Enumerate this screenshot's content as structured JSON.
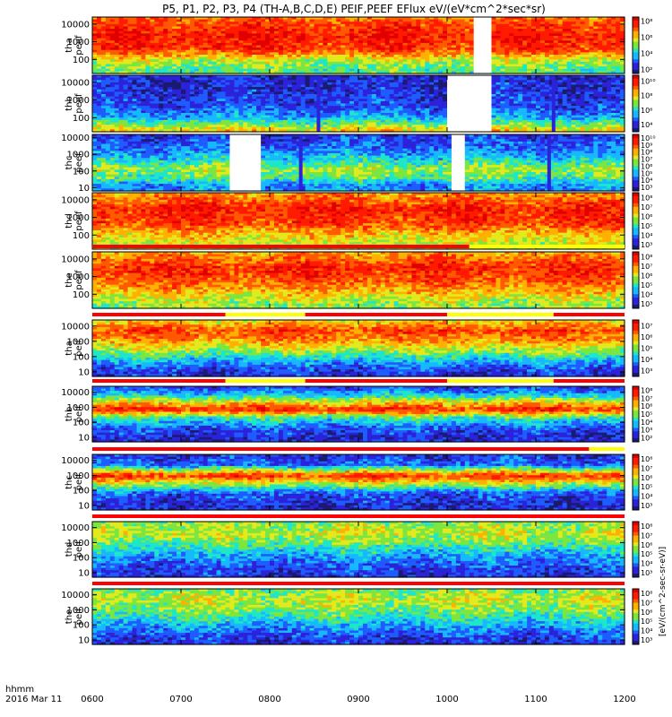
{
  "title": "P5, P1, P2, P3, P4 (TH-A,B,C,D,E) PEIF,PEEF EFlux eV/(eV*cm^2*sec*sr)",
  "time_axis": {
    "row1_label": "hhmm",
    "row2_label": "2016 Mar 11",
    "ticks": [
      "0600",
      "0700",
      "0800",
      "0900",
      "1000",
      "1100",
      "1200"
    ],
    "tick_hours": [
      6,
      7,
      8,
      9,
      10,
      11,
      12
    ],
    "range_hours": [
      6,
      12
    ]
  },
  "colorbar_unit_label": "[eV/(cm^2-sec-sr-eV)]",
  "colormap": [
    "#1a1a6e",
    "#2b22d9",
    "#1f5cff",
    "#17b8ff",
    "#1ee6c8",
    "#7ce640",
    "#e2ea1e",
    "#ffb000",
    "#ff5a00",
    "#ff1a00",
    "#e00000"
  ],
  "quality_bar_colors": {
    "ok": "#ff0000",
    "caution": "#ffff00"
  },
  "chart_data": {
    "type": "heatmap",
    "x_unit": "UT hours",
    "panels": [
      {
        "id": "tha-peef",
        "probe": "tha",
        "product": "peef",
        "ylabel_lines": [
          "tha",
          "peef"
        ],
        "yticks": [
          "10000",
          "1000",
          "100"
        ],
        "ytick_log": [
          4,
          3,
          2
        ],
        "ylog_range": [
          1.2,
          4.4
        ],
        "cbar_labels": [
          "10⁸",
          "10⁶",
          "10⁴",
          "10²"
        ],
        "cbar_log": [
          8,
          6,
          4,
          2
        ],
        "cbar_log_range": [
          1.5,
          8.5
        ],
        "levels": [
          {
            "log_e": 4.4,
            "value": 0.78
          },
          {
            "log_e": 3.4,
            "value": 0.92
          },
          {
            "log_e": 2.6,
            "value": 0.88
          },
          {
            "log_e": 1.9,
            "value": 0.55
          },
          {
            "log_e": 1.4,
            "value": 0.45
          }
        ],
        "gaps": [
          [
            10.3,
            10.5
          ]
        ],
        "vertical_stripes": []
      },
      {
        "id": "thb-peef",
        "probe": "thb",
        "product": "peef",
        "ylabel_lines": [
          "thb",
          "peef"
        ],
        "yticks": [
          "10000",
          "1000",
          "100"
        ],
        "ytick_log": [
          4,
          3,
          2
        ],
        "ylog_range": [
          1.2,
          4.4
        ],
        "cbar_labels": [
          "10¹⁰",
          "10⁸",
          "10⁶",
          "10⁴"
        ],
        "cbar_log": [
          10,
          8,
          6,
          4
        ],
        "cbar_log_range": [
          3.0,
          10.8
        ],
        "levels": [
          {
            "log_e": 4.4,
            "value": 0.1
          },
          {
            "log_e": 3.4,
            "value": 0.12
          },
          {
            "log_e": 2.5,
            "value": 0.18
          },
          {
            "log_e": 2.0,
            "value": 0.3
          },
          {
            "log_e": 1.6,
            "value": 0.5
          },
          {
            "log_e": 1.3,
            "value": 0.65
          }
        ],
        "gaps": [
          [
            10.0,
            10.5
          ]
        ],
        "vertical_stripes": [
          8.55,
          11.2
        ]
      },
      {
        "id": "thc-peef",
        "probe": "thc",
        "product": "peef",
        "ylabel_lines": [
          "thc",
          "peef"
        ],
        "yticks": [
          "10000",
          "1000",
          "100",
          "10"
        ],
        "ytick_log": [
          4,
          3,
          2,
          1
        ],
        "ylog_range": [
          0.8,
          4.2
        ],
        "cbar_labels": [
          "10¹⁰",
          "10⁹",
          "10⁸",
          "10⁷",
          "10⁶",
          "10⁵",
          "10⁴",
          "10³"
        ],
        "cbar_log": [
          10,
          9,
          8,
          7,
          6,
          5,
          4,
          3
        ],
        "cbar_log_range": [
          2.5,
          10.5
        ],
        "levels": [
          {
            "log_e": 4.2,
            "value": 0.12
          },
          {
            "log_e": 3.3,
            "value": 0.22
          },
          {
            "log_e": 2.6,
            "value": 0.38
          },
          {
            "log_e": 2.1,
            "value": 0.55
          },
          {
            "log_e": 1.6,
            "value": 0.45
          },
          {
            "log_e": 1.1,
            "value": 0.25
          }
        ],
        "gaps": [
          [
            7.55,
            7.9
          ],
          [
            10.05,
            10.2
          ]
        ],
        "vertical_stripes": [
          8.35,
          11.15
        ]
      },
      {
        "id": "thd-peef",
        "probe": "thd",
        "product": "peef",
        "ylabel_lines": [
          "thd",
          "peef"
        ],
        "yticks": [
          "10000",
          "1000",
          "100"
        ],
        "ytick_log": [
          4,
          3,
          2
        ],
        "ylog_range": [
          1.2,
          4.4
        ],
        "cbar_labels": [
          "10⁸",
          "10⁷",
          "10⁶",
          "10⁵",
          "10⁴",
          "10³"
        ],
        "cbar_log": [
          8,
          7,
          6,
          5,
          4,
          3
        ],
        "cbar_log_range": [
          2.5,
          8.5
        ],
        "levels": [
          {
            "log_e": 4.4,
            "value": 0.72
          },
          {
            "log_e": 3.5,
            "value": 0.9
          },
          {
            "log_e": 2.7,
            "value": 0.86
          },
          {
            "log_e": 2.0,
            "value": 0.66
          },
          {
            "log_e": 1.4,
            "value": 0.55
          }
        ],
        "gaps": [],
        "vertical_stripes": []
      },
      {
        "id": "the-peef",
        "probe": "the",
        "product": "peef",
        "ylabel_lines": [
          "the",
          "peef"
        ],
        "yticks": [
          "10000",
          "1000",
          "100"
        ],
        "ytick_log": [
          4,
          3,
          2
        ],
        "ylog_range": [
          1.2,
          4.4
        ],
        "cbar_labels": [
          "10⁸",
          "10⁷",
          "10⁶",
          "10⁵",
          "10⁴",
          "10³"
        ],
        "cbar_log": [
          8,
          7,
          6,
          5,
          4,
          3
        ],
        "cbar_log_range": [
          2.5,
          8.5
        ],
        "levels": [
          {
            "log_e": 4.4,
            "value": 0.7
          },
          {
            "log_e": 3.5,
            "value": 0.9
          },
          {
            "log_e": 2.7,
            "value": 0.82
          },
          {
            "log_e": 2.0,
            "value": 0.64
          },
          {
            "log_e": 1.4,
            "value": 0.52
          }
        ],
        "gaps": [],
        "vertical_stripes": [],
        "quality_bar": {
          "segments": [
            {
              "start": 6.0,
              "end": 10.25,
              "state": "ok"
            },
            {
              "start": 10.25,
              "end": 12.0,
              "state": "caution"
            }
          ]
        }
      },
      {
        "id": "tha-peif",
        "probe": "tha",
        "product": "peif",
        "ylabel_lines": [
          "tha",
          "peif"
        ],
        "yticks": [
          "10000",
          "1000",
          "100",
          "10"
        ],
        "ytick_log": [
          4,
          3,
          2,
          1
        ],
        "ylog_range": [
          0.7,
          4.4
        ],
        "cbar_labels": [
          "10⁷",
          "10⁶",
          "10⁵",
          "10⁴",
          "10³"
        ],
        "cbar_log": [
          7,
          6,
          5,
          4,
          3
        ],
        "cbar_log_range": [
          2.5,
          7.5
        ],
        "levels": [
          {
            "log_e": 4.4,
            "value": 0.62
          },
          {
            "log_e": 3.7,
            "value": 0.85
          },
          {
            "log_e": 3.0,
            "value": 0.72
          },
          {
            "log_e": 2.3,
            "value": 0.5
          },
          {
            "log_e": 1.7,
            "value": 0.3
          },
          {
            "log_e": 1.0,
            "value": 0.12
          }
        ],
        "gaps": [],
        "vertical_stripes": [],
        "quality_bar": {
          "segments": [
            {
              "start": 6.0,
              "end": 7.5,
              "state": "ok"
            },
            {
              "start": 7.5,
              "end": 8.4,
              "state": "caution"
            },
            {
              "start": 8.4,
              "end": 10.0,
              "state": "ok"
            },
            {
              "start": 10.0,
              "end": 11.2,
              "state": "caution"
            },
            {
              "start": 11.2,
              "end": 12.0,
              "state": "ok"
            }
          ]
        }
      },
      {
        "id": "thb-peif",
        "probe": "thb",
        "product": "peif",
        "ylabel_lines": [
          "thb",
          "peif"
        ],
        "yticks": [
          "10000",
          "1000",
          "100",
          "10"
        ],
        "ytick_log": [
          4,
          3,
          2,
          1
        ],
        "ylog_range": [
          0.7,
          4.4
        ],
        "cbar_labels": [
          "10⁸",
          "10⁷",
          "10⁶",
          "10⁵",
          "10⁴",
          "10³",
          "10²"
        ],
        "cbar_log": [
          8,
          7,
          6,
          5,
          4,
          3,
          2
        ],
        "cbar_log_range": [
          1.5,
          8.5
        ],
        "levels": [
          {
            "log_e": 4.4,
            "value": 0.14
          },
          {
            "log_e": 3.9,
            "value": 0.3
          },
          {
            "log_e": 3.35,
            "value": 0.62
          },
          {
            "log_e": 2.85,
            "value": 0.9
          },
          {
            "log_e": 2.3,
            "value": 0.42
          },
          {
            "log_e": 1.6,
            "value": 0.18
          },
          {
            "log_e": 1.0,
            "value": 0.1
          }
        ],
        "gaps": [],
        "vertical_stripes": [],
        "quality_bar": {
          "segments": [
            {
              "start": 6.0,
              "end": 7.5,
              "state": "ok"
            },
            {
              "start": 7.5,
              "end": 8.4,
              "state": "caution"
            },
            {
              "start": 8.4,
              "end": 10.0,
              "state": "ok"
            },
            {
              "start": 10.0,
              "end": 11.2,
              "state": "caution"
            },
            {
              "start": 11.2,
              "end": 12.0,
              "state": "ok"
            }
          ]
        }
      },
      {
        "id": "thc-peif",
        "probe": "thc",
        "product": "peif",
        "ylabel_lines": [
          "thc",
          "peif"
        ],
        "yticks": [
          "10000",
          "1000",
          "100",
          "10"
        ],
        "ytick_log": [
          4,
          3,
          2,
          1
        ],
        "ylog_range": [
          0.7,
          4.4
        ],
        "cbar_labels": [
          "10⁸",
          "10⁷",
          "10⁶",
          "10⁵",
          "10⁴",
          "10³"
        ],
        "cbar_log": [
          8,
          7,
          6,
          5,
          4,
          3
        ],
        "cbar_log_range": [
          2.5,
          8.5
        ],
        "levels": [
          {
            "log_e": 4.4,
            "value": 0.12
          },
          {
            "log_e": 3.7,
            "value": 0.2
          },
          {
            "log_e": 3.0,
            "value": 0.88
          },
          {
            "log_e": 2.5,
            "value": 0.6
          },
          {
            "log_e": 1.8,
            "value": 0.18
          },
          {
            "log_e": 1.0,
            "value": 0.1
          }
        ],
        "gaps": [],
        "vertical_stripes": [],
        "quality_bar": {
          "segments": [
            {
              "start": 6.0,
              "end": 11.6,
              "state": "ok"
            },
            {
              "start": 11.6,
              "end": 12.0,
              "state": "caution"
            }
          ]
        }
      },
      {
        "id": "thd-peif",
        "probe": "thd",
        "product": "peif",
        "ylabel_lines": [
          "thd",
          "peif"
        ],
        "yticks": [
          "10000",
          "1000",
          "100",
          "10"
        ],
        "ytick_log": [
          4,
          3,
          2,
          1
        ],
        "ylog_range": [
          0.7,
          4.4
        ],
        "cbar_labels": [
          "10⁸",
          "10⁷",
          "10⁶",
          "10⁵",
          "10⁴",
          "10³"
        ],
        "cbar_log": [
          8,
          7,
          6,
          5,
          4,
          3
        ],
        "cbar_log_range": [
          2.5,
          8.5
        ],
        "levels": [
          {
            "log_e": 4.4,
            "value": 0.5
          },
          {
            "log_e": 3.6,
            "value": 0.58
          },
          {
            "log_e": 2.9,
            "value": 0.46
          },
          {
            "log_e": 2.2,
            "value": 0.3
          },
          {
            "log_e": 1.5,
            "value": 0.18
          },
          {
            "log_e": 0.9,
            "value": 0.12
          }
        ],
        "gaps": [],
        "vertical_stripes": [],
        "quality_bar": {
          "segments": [
            {
              "start": 6.0,
              "end": 12.0,
              "state": "ok"
            }
          ]
        }
      },
      {
        "id": "the-peif",
        "probe": "the",
        "product": "peif",
        "ylabel_lines": [
          "the",
          "peif"
        ],
        "yticks": [
          "10000",
          "1000",
          "100",
          "10"
        ],
        "ytick_log": [
          4,
          3,
          2,
          1
        ],
        "ylog_range": [
          0.7,
          4.4
        ],
        "cbar_labels": [
          "10⁸",
          "10⁷",
          "10⁶",
          "10⁵",
          "10⁴",
          "10³"
        ],
        "cbar_log": [
          8,
          7,
          6,
          5,
          4,
          3
        ],
        "cbar_log_range": [
          2.5,
          8.5
        ],
        "levels": [
          {
            "log_e": 4.4,
            "value": 0.48
          },
          {
            "log_e": 3.7,
            "value": 0.58
          },
          {
            "log_e": 3.0,
            "value": 0.5
          },
          {
            "log_e": 2.3,
            "value": 0.36
          },
          {
            "log_e": 1.6,
            "value": 0.22
          },
          {
            "log_e": 0.9,
            "value": 0.12
          }
        ],
        "gaps": [],
        "vertical_stripes": [],
        "quality_bar": {
          "segments": [
            {
              "start": 6.0,
              "end": 12.0,
              "state": "ok"
            }
          ]
        }
      }
    ]
  }
}
